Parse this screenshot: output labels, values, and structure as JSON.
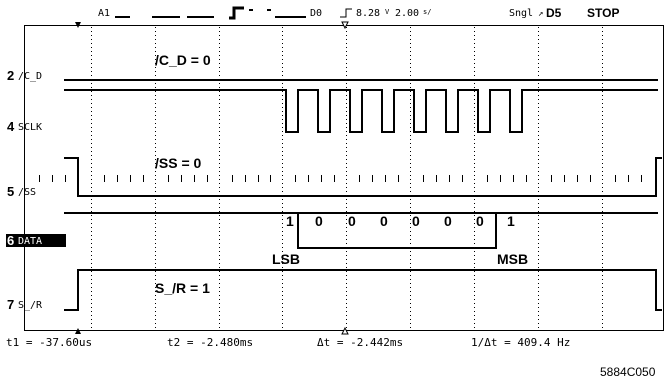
{
  "status_bar": {
    "ch_a": "A1",
    "d_label": "D0",
    "trigger_level": "8.28",
    "timebase": "2.00",
    "mode": "Sngl",
    "trigger_channel": "D5",
    "run_state": "STOP"
  },
  "channels": [
    {
      "number": "2",
      "name": "/C_D"
    },
    {
      "number": "4",
      "name": "SCLK"
    },
    {
      "number": "5",
      "name": "/SS"
    },
    {
      "number": "6",
      "name": "DATA"
    },
    {
      "number": "7",
      "name": "S_/R"
    }
  ],
  "annotations": {
    "cd": "/C_D = 0",
    "ss": "/SS = 0",
    "sr": "S_/R = 1",
    "bits": [
      "1",
      "0",
      "0",
      "0",
      "0",
      "0",
      "0",
      "1"
    ],
    "lsb": "LSB",
    "msb": "MSB"
  },
  "measurements": {
    "t1": "t1 = -37.60us",
    "t2": "t2 = -2.480ms",
    "dt": "Δt = -2.442ms",
    "inv_dt": "1/Δt = 409.4 Hz"
  },
  "figure_id": "5884C050"
}
